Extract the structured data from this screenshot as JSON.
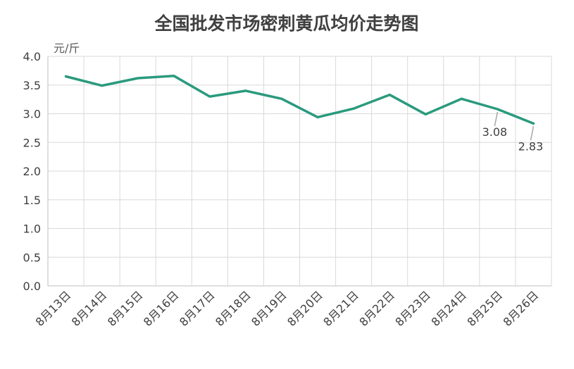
{
  "chart_data": {
    "type": "line",
    "title": "全国批发市场密刺黄瓜均价走势图",
    "ylabel": "元/斤",
    "xlabel": "",
    "categories": [
      "8月13日",
      "8月14日",
      "8月15日",
      "8月16日",
      "8月17日",
      "8月18日",
      "8月19日",
      "8月20日",
      "8月21日",
      "8月22日",
      "8月23日",
      "8月24日",
      "8月25日",
      "8月26日"
    ],
    "series": [
      {
        "values": [
          3.65,
          3.49,
          3.62,
          3.66,
          3.3,
          3.4,
          3.26,
          2.94,
          3.09,
          3.33,
          2.99,
          3.26,
          3.08,
          2.83
        ],
        "color": "#2a9a7d"
      }
    ],
    "ylim": [
      0,
      4.0
    ],
    "yticks": [
      "0.0",
      "0.5",
      "1.0",
      "1.5",
      "2.0",
      "2.5",
      "3.0",
      "3.5",
      "4.0"
    ],
    "data_labels": [
      {
        "index": 12,
        "text": "3.08"
      },
      {
        "index": 13,
        "text": "2.83"
      }
    ],
    "grid": true,
    "legend": "none"
  }
}
